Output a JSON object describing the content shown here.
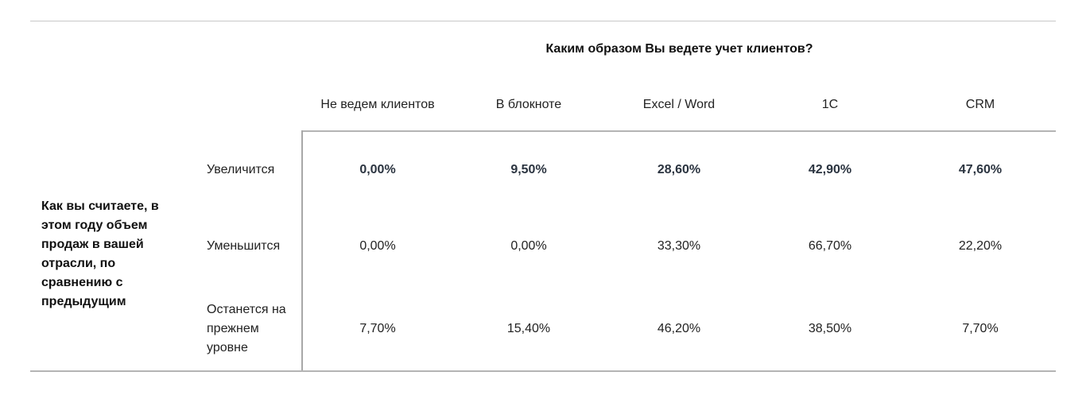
{
  "table": {
    "column_question": "Каким образом Вы ведете учет клиентов?",
    "columns": [
      "Не ведем клиентов",
      "В блокноте",
      "Excel / Word",
      "1C",
      "CRM"
    ],
    "row_question": "Как вы считаете, в этом году объем продаж в вашей отрасли, по сравнению с предыдущим",
    "rows": [
      {
        "label": "Увеличится",
        "values": [
          "0,00%",
          "9,50%",
          "28,60%",
          "42,90%",
          "47,60%"
        ],
        "bold": true
      },
      {
        "label": "Уменьшится",
        "values": [
          "0,00%",
          "0,00%",
          "33,30%",
          "66,70%",
          "22,20%"
        ],
        "bold": false
      },
      {
        "label": "Останется на прежнем уровне",
        "values": [
          "7,70%",
          "15,40%",
          "46,20%",
          "38,50%",
          "7,70%"
        ],
        "bold": false
      }
    ]
  }
}
